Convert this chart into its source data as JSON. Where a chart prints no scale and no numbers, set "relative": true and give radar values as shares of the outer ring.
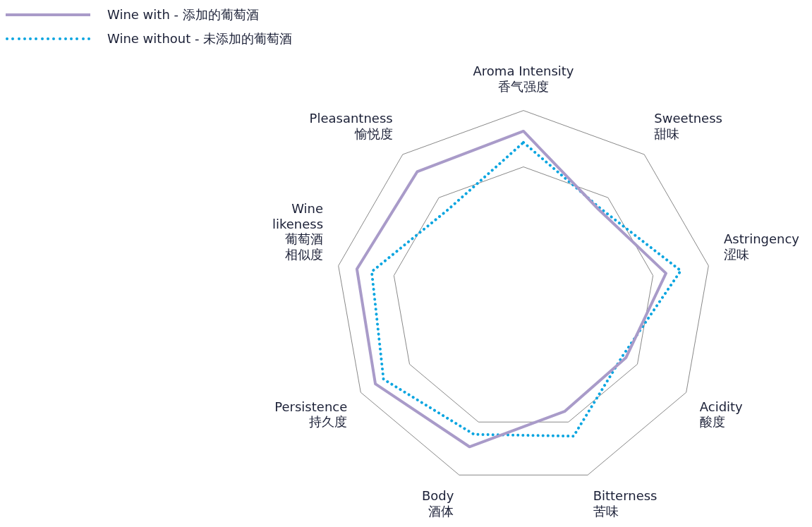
{
  "chart_data": {
    "type": "radar",
    "relative": true,
    "legend": "top left",
    "marker": "none",
    "categories": [
      "Aroma Intensity\n香气强度",
      "Sweetness\n甜味",
      "Astringency\n涩味",
      "Acidity\n酸度",
      "Bitterness\n苦味",
      "Body\n酒体",
      "Persistence\n持久度",
      "Wine\nlikeness\n葡萄酒相似度",
      "Pleasantness\n愉悦度"
    ],
    "series": [
      {
        "name": "Wine with - 添加的葡萄酒",
        "color": "#a99bc9",
        "line_style": "solid",
        "values": [
          0.89,
          0.62,
          0.77,
          0.63,
          0.64,
          0.84,
          0.91,
          0.9,
          0.88
        ]
      },
      {
        "name": "Wine without - 未添加的葡萄酒",
        "color": "#0aa5e0",
        "line_style": "dotted",
        "values": [
          0.83,
          0.63,
          0.85,
          0.61,
          0.78,
          0.77,
          0.86,
          0.82,
          0.62
        ]
      }
    ]
  }
}
